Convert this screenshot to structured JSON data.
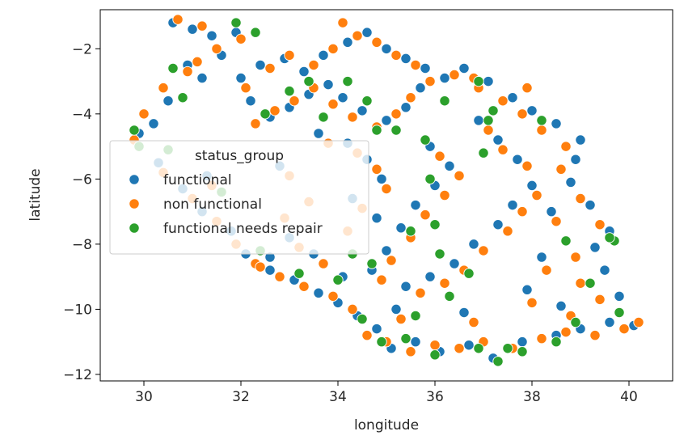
{
  "chart_data": {
    "type": "scatter",
    "xlabel": "longitude",
    "ylabel": "latitude",
    "xlim": [
      29.1,
      40.9
    ],
    "ylim": [
      -12.2,
      -0.8
    ],
    "xticks": [
      30,
      32,
      34,
      36,
      38,
      40
    ],
    "yticks": [
      -2,
      -4,
      -6,
      -8,
      -10,
      -12
    ],
    "grid": false,
    "legend": {
      "title": "status_group",
      "placement": "center-left",
      "entries": [
        "functional",
        "non functional",
        "functional needs repair"
      ]
    },
    "colors": {
      "functional": "#1f77b4",
      "non functional": "#ff7f0e",
      "functional needs repair": "#2ca02c"
    },
    "series": [
      {
        "name": "functional",
        "points": [
          [
            30.6,
            -1.2
          ],
          [
            31.0,
            -1.4
          ],
          [
            31.4,
            -1.6
          ],
          [
            31.6,
            -2.2
          ],
          [
            31.2,
            -2.9
          ],
          [
            30.5,
            -3.6
          ],
          [
            30.2,
            -4.3
          ],
          [
            29.9,
            -4.6
          ],
          [
            30.3,
            -5.5
          ],
          [
            30.8,
            -6.3
          ],
          [
            31.2,
            -7.0
          ],
          [
            31.8,
            -7.6
          ],
          [
            32.1,
            -8.3
          ],
          [
            32.6,
            -8.8
          ],
          [
            33.1,
            -9.1
          ],
          [
            33.6,
            -9.5
          ],
          [
            34.0,
            -9.8
          ],
          [
            34.4,
            -10.2
          ],
          [
            34.8,
            -10.6
          ],
          [
            35.1,
            -11.2
          ],
          [
            35.6,
            -11.0
          ],
          [
            36.1,
            -11.3
          ],
          [
            36.7,
            -11.1
          ],
          [
            37.2,
            -11.5
          ],
          [
            37.8,
            -11.0
          ],
          [
            38.5,
            -10.8
          ],
          [
            39.0,
            -10.6
          ],
          [
            39.6,
            -10.4
          ],
          [
            40.1,
            -10.5
          ],
          [
            39.8,
            -9.6
          ],
          [
            39.5,
            -8.8
          ],
          [
            39.3,
            -8.1
          ],
          [
            39.6,
            -7.6
          ],
          [
            39.2,
            -6.8
          ],
          [
            38.8,
            -6.1
          ],
          [
            38.9,
            -5.4
          ],
          [
            39.0,
            -4.8
          ],
          [
            38.5,
            -4.3
          ],
          [
            38.0,
            -3.9
          ],
          [
            37.6,
            -3.5
          ],
          [
            37.1,
            -3.0
          ],
          [
            36.6,
            -2.6
          ],
          [
            36.2,
            -2.9
          ],
          [
            35.7,
            -3.2
          ],
          [
            35.4,
            -3.8
          ],
          [
            35.0,
            -4.2
          ],
          [
            34.5,
            -3.9
          ],
          [
            34.1,
            -3.5
          ],
          [
            33.8,
            -3.1
          ],
          [
            33.4,
            -3.4
          ],
          [
            33.0,
            -3.8
          ],
          [
            32.6,
            -4.1
          ],
          [
            32.2,
            -3.6
          ],
          [
            32.0,
            -2.9
          ],
          [
            32.4,
            -2.5
          ],
          [
            32.9,
            -2.3
          ],
          [
            33.3,
            -2.7
          ],
          [
            33.7,
            -2.2
          ],
          [
            34.2,
            -1.8
          ],
          [
            34.6,
            -1.5
          ],
          [
            35.0,
            -2.0
          ],
          [
            35.4,
            -2.3
          ],
          [
            35.8,
            -2.6
          ],
          [
            35.9,
            -5.0
          ],
          [
            36.3,
            -5.6
          ],
          [
            36.0,
            -6.2
          ],
          [
            35.6,
            -6.8
          ],
          [
            35.3,
            -7.5
          ],
          [
            35.0,
            -8.2
          ],
          [
            34.7,
            -8.8
          ],
          [
            35.4,
            -9.3
          ],
          [
            35.9,
            -9.0
          ],
          [
            36.4,
            -8.6
          ],
          [
            36.8,
            -8.0
          ],
          [
            37.3,
            -7.4
          ],
          [
            37.6,
            -6.8
          ],
          [
            38.0,
            -6.2
          ],
          [
            37.7,
            -5.4
          ],
          [
            37.3,
            -4.8
          ],
          [
            36.9,
            -4.2
          ],
          [
            34.6,
            -5.4
          ],
          [
            34.9,
            -6.0
          ],
          [
            34.3,
            -6.6
          ],
          [
            34.8,
            -7.2
          ],
          [
            34.1,
            -9.0
          ],
          [
            33.5,
            -8.3
          ],
          [
            33.0,
            -7.8
          ],
          [
            32.8,
            -5.6
          ],
          [
            33.6,
            -4.6
          ],
          [
            34.2,
            -4.9
          ],
          [
            38.4,
            -7.0
          ],
          [
            38.2,
            -8.4
          ],
          [
            37.9,
            -9.4
          ],
          [
            38.6,
            -9.9
          ],
          [
            36.6,
            -10.1
          ],
          [
            35.2,
            -10.0
          ],
          [
            32.6,
            -8.4
          ],
          [
            31.3,
            -5.9
          ],
          [
            30.9,
            -2.5
          ],
          [
            31.9,
            -1.5
          ]
        ]
      },
      {
        "name": "non functional",
        "points": [
          [
            30.7,
            -1.1
          ],
          [
            31.2,
            -1.3
          ],
          [
            31.5,
            -2.0
          ],
          [
            30.9,
            -2.7
          ],
          [
            30.4,
            -3.2
          ],
          [
            30.0,
            -4.0
          ],
          [
            29.8,
            -4.8
          ],
          [
            30.4,
            -5.8
          ],
          [
            31.0,
            -6.6
          ],
          [
            31.5,
            -7.3
          ],
          [
            31.9,
            -8.0
          ],
          [
            32.3,
            -8.6
          ],
          [
            32.8,
            -9.0
          ],
          [
            33.3,
            -9.3
          ],
          [
            33.9,
            -9.6
          ],
          [
            34.3,
            -10.0
          ],
          [
            34.6,
            -10.8
          ],
          [
            35.0,
            -11.0
          ],
          [
            35.5,
            -11.3
          ],
          [
            36.0,
            -11.1
          ],
          [
            36.5,
            -11.2
          ],
          [
            37.0,
            -11.0
          ],
          [
            37.6,
            -11.2
          ],
          [
            38.2,
            -10.9
          ],
          [
            38.7,
            -10.7
          ],
          [
            39.3,
            -10.8
          ],
          [
            39.9,
            -10.6
          ],
          [
            40.2,
            -10.4
          ],
          [
            39.4,
            -9.7
          ],
          [
            39.0,
            -9.2
          ],
          [
            38.9,
            -8.4
          ],
          [
            39.4,
            -7.4
          ],
          [
            39.0,
            -6.6
          ],
          [
            38.6,
            -5.7
          ],
          [
            38.7,
            -5.0
          ],
          [
            38.2,
            -4.5
          ],
          [
            37.8,
            -4.0
          ],
          [
            37.4,
            -3.6
          ],
          [
            36.9,
            -3.2
          ],
          [
            36.4,
            -2.8
          ],
          [
            35.9,
            -3.0
          ],
          [
            35.5,
            -3.5
          ],
          [
            35.2,
            -4.0
          ],
          [
            34.8,
            -4.4
          ],
          [
            34.3,
            -4.1
          ],
          [
            33.9,
            -3.7
          ],
          [
            33.5,
            -3.2
          ],
          [
            33.1,
            -3.6
          ],
          [
            32.7,
            -3.9
          ],
          [
            32.3,
            -4.3
          ],
          [
            32.1,
            -3.2
          ],
          [
            32.6,
            -2.6
          ],
          [
            33.0,
            -2.2
          ],
          [
            33.5,
            -2.5
          ],
          [
            33.9,
            -2.0
          ],
          [
            34.4,
            -1.6
          ],
          [
            34.8,
            -1.8
          ],
          [
            35.2,
            -2.2
          ],
          [
            35.6,
            -2.5
          ],
          [
            36.1,
            -5.3
          ],
          [
            36.5,
            -5.9
          ],
          [
            36.2,
            -6.5
          ],
          [
            35.8,
            -7.1
          ],
          [
            35.5,
            -7.8
          ],
          [
            35.1,
            -8.5
          ],
          [
            34.9,
            -9.1
          ],
          [
            35.7,
            -9.5
          ],
          [
            36.2,
            -9.2
          ],
          [
            36.6,
            -8.8
          ],
          [
            37.0,
            -8.2
          ],
          [
            37.5,
            -7.6
          ],
          [
            37.8,
            -7.0
          ],
          [
            38.1,
            -6.5
          ],
          [
            37.9,
            -5.6
          ],
          [
            37.4,
            -5.1
          ],
          [
            37.1,
            -4.5
          ],
          [
            34.8,
            -5.7
          ],
          [
            35.0,
            -6.3
          ],
          [
            34.5,
            -6.9
          ],
          [
            34.2,
            -7.6
          ],
          [
            33.7,
            -8.6
          ],
          [
            33.2,
            -8.1
          ],
          [
            32.9,
            -7.2
          ],
          [
            33.0,
            -5.9
          ],
          [
            33.8,
            -4.9
          ],
          [
            34.4,
            -5.2
          ],
          [
            38.5,
            -7.3
          ],
          [
            38.3,
            -8.8
          ],
          [
            38.0,
            -9.8
          ],
          [
            38.8,
            -10.2
          ],
          [
            36.8,
            -10.4
          ],
          [
            35.3,
            -10.3
          ],
          [
            32.4,
            -8.7
          ],
          [
            31.4,
            -6.2
          ],
          [
            31.1,
            -2.4
          ],
          [
            32.0,
            -1.7
          ],
          [
            36.8,
            -2.9
          ],
          [
            37.9,
            -3.2
          ],
          [
            34.1,
            -1.2
          ],
          [
            33.4,
            -6.7
          ]
        ]
      },
      {
        "name": "functional needs repair",
        "points": [
          [
            31.9,
            -1.2
          ],
          [
            30.6,
            -2.6
          ],
          [
            30.8,
            -3.5
          ],
          [
            29.8,
            -4.5
          ],
          [
            29.9,
            -5.0
          ],
          [
            30.5,
            -5.1
          ],
          [
            31.6,
            -6.4
          ],
          [
            32.4,
            -8.2
          ],
          [
            33.2,
            -8.9
          ],
          [
            34.0,
            -9.1
          ],
          [
            34.7,
            -8.6
          ],
          [
            34.5,
            -10.3
          ],
          [
            34.9,
            -11.0
          ],
          [
            35.4,
            -10.9
          ],
          [
            36.0,
            -11.4
          ],
          [
            36.9,
            -11.2
          ],
          [
            37.3,
            -11.6
          ],
          [
            37.5,
            -11.2
          ],
          [
            37.8,
            -11.3
          ],
          [
            38.5,
            -11.0
          ],
          [
            39.8,
            -10.1
          ],
          [
            39.2,
            -9.2
          ],
          [
            39.7,
            -7.9
          ],
          [
            39.6,
            -7.8
          ],
          [
            38.7,
            -7.9
          ],
          [
            38.2,
            -4.2
          ],
          [
            37.2,
            -3.9
          ],
          [
            36.9,
            -3.0
          ],
          [
            36.2,
            -3.6
          ],
          [
            35.2,
            -4.5
          ],
          [
            34.8,
            -4.5
          ],
          [
            34.2,
            -3.0
          ],
          [
            33.7,
            -4.1
          ],
          [
            33.0,
            -3.3
          ],
          [
            32.5,
            -4.0
          ],
          [
            32.3,
            -1.5
          ],
          [
            33.4,
            -3.0
          ],
          [
            34.6,
            -3.6
          ],
          [
            35.8,
            -4.8
          ],
          [
            35.5,
            -7.6
          ],
          [
            36.1,
            -8.3
          ],
          [
            36.7,
            -8.9
          ],
          [
            37.1,
            -4.2
          ],
          [
            36.0,
            -7.4
          ],
          [
            35.6,
            -10.2
          ],
          [
            36.3,
            -9.6
          ],
          [
            38.9,
            -10.4
          ],
          [
            37.0,
            -5.2
          ],
          [
            35.9,
            -6.0
          ],
          [
            34.3,
            -8.3
          ]
        ]
      }
    ]
  }
}
